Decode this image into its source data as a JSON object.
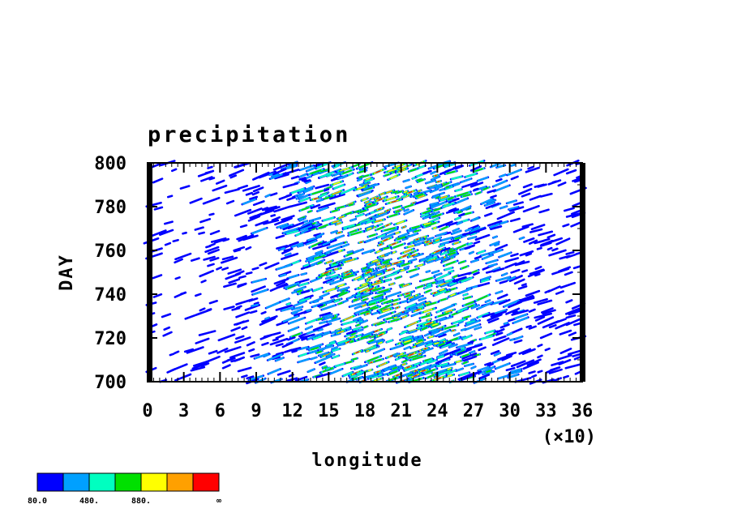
{
  "chart_data": {
    "type": "heatmap",
    "title": "precipitation",
    "xlabel": "longitude",
    "ylabel": "DAY",
    "x_multiplier_label": "(×10)",
    "xlim": [
      0,
      36
    ],
    "ylim": [
      700,
      800
    ],
    "x_ticks": [
      "0",
      "3",
      "6",
      "9",
      "12",
      "15",
      "18",
      "21",
      "24",
      "27",
      "30",
      "33",
      "36"
    ],
    "y_ticks": [
      "700",
      "720",
      "740",
      "760",
      "780",
      "800"
    ],
    "colorbar": {
      "colors": [
        "#0000ff",
        "#00a0ff",
        "#00ffc0",
        "#00e000",
        "#ffff00",
        "#ffa000",
        "#ff0000"
      ],
      "labels": [
        "80.0",
        "480.",
        "880.",
        "∞"
      ]
    }
  }
}
